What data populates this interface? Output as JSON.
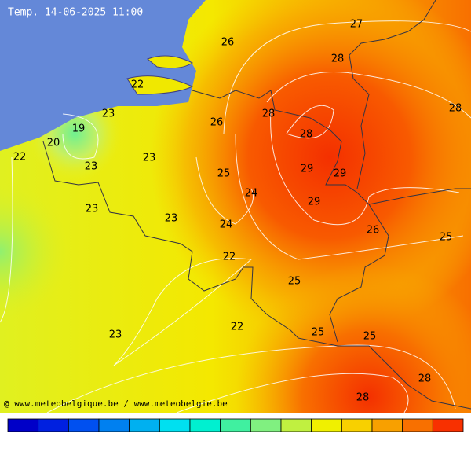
{
  "title": "Temp. 14-06-2025 11:00",
  "credit": "@ www.meteobelgique.be / www.meteobelgie.be",
  "labels": [
    27,
    26,
    28,
    22,
    23,
    28,
    26,
    28,
    19,
    28,
    20,
    22,
    23,
    23,
    29,
    29,
    25,
    24,
    29,
    23,
    23,
    24,
    26,
    25,
    22,
    25,
    22,
    23,
    25,
    25,
    28,
    28
  ],
  "colorbar": [
    "#0000c8",
    "#0020e0",
    "#0050f0",
    "#0080f0",
    "#00b0f0",
    "#00e0f0",
    "#00f0d0",
    "#40f0a0",
    "#80f080",
    "#c0f040",
    "#f0f000",
    "#f8d000",
    "#f8a000",
    "#f87000",
    "#f83000"
  ]
}
